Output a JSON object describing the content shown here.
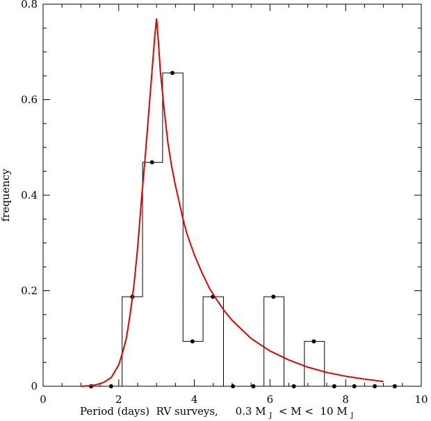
{
  "chart_data": {
    "type": "bar",
    "xlabel": "Period (days)  RV surveys,",
    "xlabel_mass": {
      "low": "0.3 M",
      "lt1": " < M < ",
      "high": "10 M",
      "sub": "J"
    },
    "ylabel": "frequency",
    "xlim": [
      0,
      10
    ],
    "ylim": [
      0,
      0.8
    ],
    "x_ticks": [
      {
        "value": 0,
        "label": "0"
      },
      {
        "value": 2,
        "label": "2"
      },
      {
        "value": 4,
        "label": "4"
      },
      {
        "value": 6,
        "label": "6"
      },
      {
        "value": 8,
        "label": "8"
      },
      {
        "value": 10,
        "label": "10"
      }
    ],
    "y_ticks": [
      {
        "value": 0,
        "label": "0"
      },
      {
        "value": 0.2,
        "label": "0.2"
      },
      {
        "value": 0.4,
        "label": "0.4"
      },
      {
        "value": 0.6,
        "label": "0.6"
      },
      {
        "value": 0.8,
        "label": "0.8"
      }
    ],
    "histogram_bins": [
      {
        "x0": 1.02,
        "x1": 1.56,
        "value": 0
      },
      {
        "x0": 1.56,
        "x1": 2.09,
        "value": 0
      },
      {
        "x0": 2.09,
        "x1": 2.63,
        "value": 0.1875
      },
      {
        "x0": 2.63,
        "x1": 3.16,
        "value": 0.469
      },
      {
        "x0": 3.16,
        "x1": 3.7,
        "value": 0.656
      },
      {
        "x0": 3.7,
        "x1": 4.23,
        "value": 0.094
      },
      {
        "x0": 4.23,
        "x1": 4.77,
        "value": 0.1875
      },
      {
        "x0": 4.77,
        "x1": 5.3,
        "value": 0
      },
      {
        "x0": 5.3,
        "x1": 5.84,
        "value": 0
      },
      {
        "x0": 5.84,
        "x1": 6.37,
        "value": 0.1875
      },
      {
        "x0": 6.37,
        "x1": 6.91,
        "value": 0
      },
      {
        "x0": 6.91,
        "x1": 7.44,
        "value": 0.094
      },
      {
        "x0": 7.44,
        "x1": 7.98,
        "value": 0
      },
      {
        "x0": 7.98,
        "x1": 8.51,
        "value": 0
      },
      {
        "x0": 8.51,
        "x1": 9.05,
        "value": 0
      }
    ],
    "points": [
      {
        "x": 1.27,
        "y": 0
      },
      {
        "x": 1.8,
        "y": 0
      },
      {
        "x": 2.36,
        "y": 0.1875
      },
      {
        "x": 2.88,
        "y": 0.469
      },
      {
        "x": 3.42,
        "y": 0.656
      },
      {
        "x": 3.95,
        "y": 0.094
      },
      {
        "x": 4.49,
        "y": 0.1875
      },
      {
        "x": 5.02,
        "y": 0
      },
      {
        "x": 5.56,
        "y": 0
      },
      {
        "x": 6.09,
        "y": 0.1875
      },
      {
        "x": 6.63,
        "y": 0
      },
      {
        "x": 7.16,
        "y": 0.094
      },
      {
        "x": 7.7,
        "y": 0
      },
      {
        "x": 8.23,
        "y": 0
      },
      {
        "x": 8.77,
        "y": 0
      },
      {
        "x": 9.3,
        "y": 0
      }
    ],
    "fit_curve": {
      "color": "#e00000",
      "x": [
        1.0,
        1.2,
        1.4,
        1.6,
        1.8,
        2.0,
        2.1,
        2.2,
        2.3,
        2.4,
        2.5,
        2.6,
        2.7,
        2.8,
        2.9,
        2.95,
        3.0,
        3.05,
        3.1,
        3.2,
        3.3,
        3.4,
        3.5,
        3.6,
        3.7,
        3.8,
        4.0,
        4.2,
        4.4,
        4.6,
        4.8,
        5.0,
        5.5,
        6.0,
        6.5,
        7.0,
        7.5,
        8.0,
        8.5,
        9.0
      ],
      "y": [
        0.0,
        0.001,
        0.003,
        0.008,
        0.018,
        0.045,
        0.07,
        0.1,
        0.15,
        0.21,
        0.29,
        0.39,
        0.48,
        0.58,
        0.68,
        0.73,
        0.77,
        0.72,
        0.66,
        0.58,
        0.51,
        0.46,
        0.42,
        0.385,
        0.35,
        0.32,
        0.275,
        0.238,
        0.205,
        0.18,
        0.157,
        0.138,
        0.1,
        0.074,
        0.055,
        0.04,
        0.029,
        0.021,
        0.015,
        0.01
      ]
    },
    "grid": false,
    "frame": "box"
  }
}
